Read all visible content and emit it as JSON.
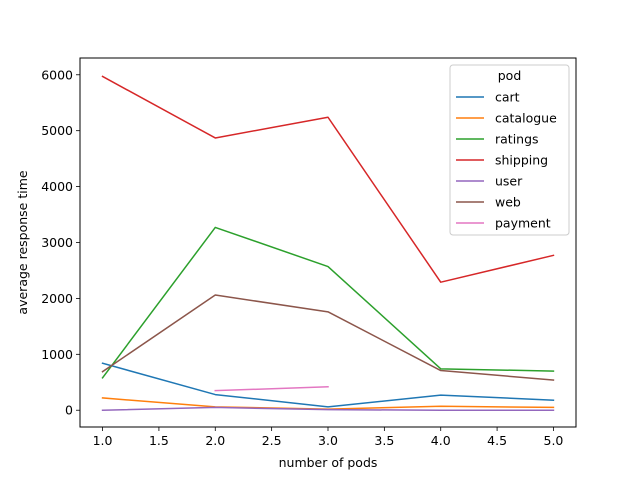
{
  "chart_data": {
    "type": "line",
    "title": "",
    "xlabel": "number of pods",
    "ylabel": "average response time",
    "xlim": [
      0.8,
      5.2
    ],
    "ylim": [
      -300,
      6300
    ],
    "xticks": [
      1.0,
      1.5,
      2.0,
      2.5,
      3.0,
      3.5,
      4.0,
      4.5,
      5.0
    ],
    "xtick_labels": [
      "1.0",
      "1.5",
      "2.0",
      "2.5",
      "3.0",
      "3.5",
      "4.0",
      "4.5",
      "5.0"
    ],
    "yticks": [
      0,
      1000,
      2000,
      3000,
      4000,
      5000,
      6000
    ],
    "ytick_labels": [
      "0",
      "1000",
      "2000",
      "3000",
      "4000",
      "5000",
      "6000"
    ],
    "grid": false,
    "legend": {
      "title": "pod",
      "placement": "upper right"
    },
    "series": [
      {
        "name": "cart",
        "color": "#1f77b4",
        "x": [
          1,
          2,
          3,
          4,
          5
        ],
        "y": [
          840,
          280,
          60,
          270,
          180
        ]
      },
      {
        "name": "catalogue",
        "color": "#ff7f0e",
        "x": [
          1,
          2,
          3,
          4,
          5
        ],
        "y": [
          220,
          60,
          20,
          70,
          50
        ]
      },
      {
        "name": "ratings",
        "color": "#2ca02c",
        "x": [
          1,
          2,
          3,
          4,
          5
        ],
        "y": [
          580,
          3270,
          2570,
          740,
          700
        ]
      },
      {
        "name": "shipping",
        "color": "#d62728",
        "x": [
          1,
          2,
          3,
          4,
          5
        ],
        "y": [
          5970,
          4870,
          5240,
          2290,
          2770
        ]
      },
      {
        "name": "user",
        "color": "#9467bd",
        "x": [
          1,
          2,
          3,
          4,
          5
        ],
        "y": [
          0,
          50,
          10,
          0,
          0
        ]
      },
      {
        "name": "web",
        "color": "#8c564b",
        "x": [
          1,
          2,
          3,
          4,
          5
        ],
        "y": [
          690,
          2060,
          1760,
          710,
          540
        ]
      },
      {
        "name": "payment",
        "color": "#e377c2",
        "x": [
          2,
          3
        ],
        "y": [
          350,
          420
        ]
      }
    ]
  }
}
